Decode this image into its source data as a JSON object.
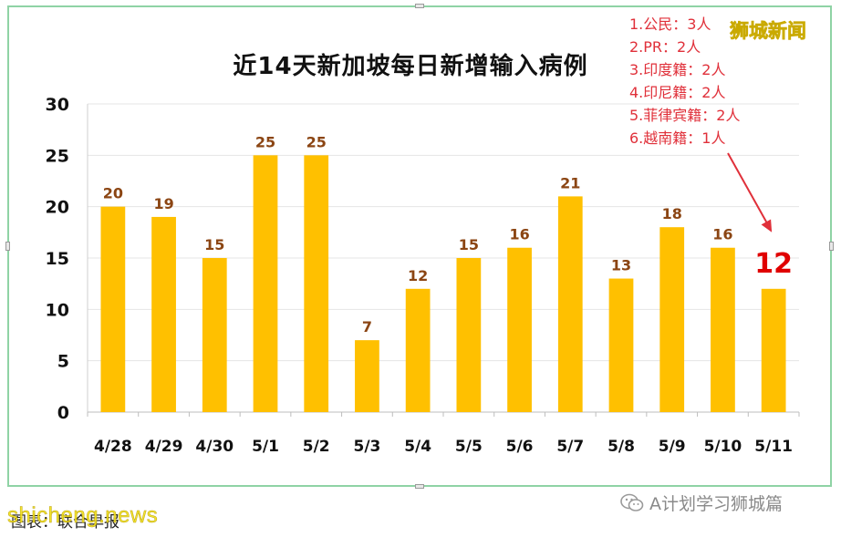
{
  "chart_data": {
    "type": "bar",
    "title": "近14天新加坡每日新增输入病例",
    "categories": [
      "4/28",
      "4/29",
      "4/30",
      "5/1",
      "5/2",
      "5/3",
      "5/4",
      "5/5",
      "5/6",
      "5/7",
      "5/8",
      "5/9",
      "5/10",
      "5/11"
    ],
    "values": [
      20,
      19,
      15,
      25,
      25,
      7,
      12,
      15,
      16,
      21,
      13,
      18,
      16,
      12
    ],
    "data_labels": [
      "20",
      "19",
      "15",
      "25",
      "25",
      "7",
      "12",
      "15",
      "16",
      "21",
      "13",
      "18",
      "16",
      "12"
    ],
    "ylim": [
      0,
      30
    ],
    "yticks": [
      0,
      5,
      10,
      15,
      20,
      25,
      30
    ],
    "ytick_labels": [
      "0",
      "5",
      "10",
      "15",
      "20",
      "25",
      "30"
    ],
    "grid": true,
    "bar_color": "#ffc000",
    "label_color": "#8b4513",
    "highlight_label_color": "#e00000",
    "highlight_index": 13
  },
  "breakdown": {
    "lines": [
      "1.公民：3人",
      "2.PR：2人",
      "3.印度籍：2人",
      "4.印尼籍：2人",
      "5.菲律宾籍：2人",
      "6.越南籍：1人"
    ]
  },
  "source_logo": "狮城新闻",
  "wechat_account": "A计划学习狮城篇",
  "credit": "图表：联合早报",
  "watermark": "shicheng.news",
  "colors": {
    "frame": "#8fd3a5",
    "arrow": "#e0303a",
    "breakdown_text": "#e0303a"
  },
  "icons": {
    "wechat": "wechat-icon"
  }
}
